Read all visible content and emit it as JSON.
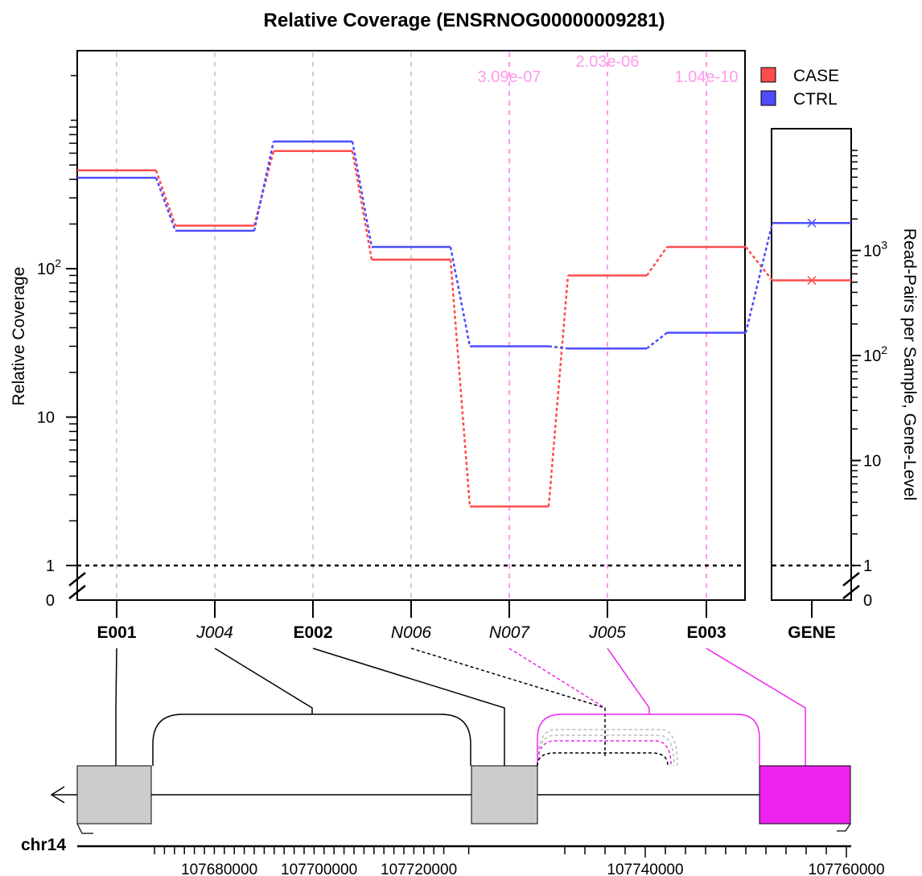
{
  "chart_data": {
    "type": "line",
    "title": "Relative Coverage (ENSRNOG00000009281)",
    "ylabel": "Relative Coverage",
    "y2label": "Read-Pairs per Sample, Gene-Level",
    "yscale": "log",
    "y_ticks": [
      "0",
      "1",
      "10",
      "10^2"
    ],
    "y2_ticks": [
      "0",
      "1",
      "10",
      "10^2",
      "10^3"
    ],
    "x_features": [
      {
        "id": "E001",
        "italic": false
      },
      {
        "id": "J004",
        "italic": true
      },
      {
        "id": "E002",
        "italic": false
      },
      {
        "id": "N006",
        "italic": true
      },
      {
        "id": "N007",
        "italic": true
      },
      {
        "id": "J005",
        "italic": true
      },
      {
        "id": "E003",
        "italic": false
      }
    ],
    "gene_label": "GENE",
    "legend": {
      "position": "top-right",
      "entries": [
        {
          "name": "CASE",
          "color": "#ff4d4d"
        },
        {
          "name": "CTRL",
          "color": "#4d4dff"
        }
      ]
    },
    "series": [
      {
        "name": "CASE",
        "color": "#ff4d4d",
        "values": [
          460,
          195,
          620,
          115,
          2.5,
          90,
          140
        ],
        "gene_level": 520
      },
      {
        "name": "CTRL",
        "color": "#4d4dff",
        "values": [
          410,
          180,
          720,
          140,
          30,
          29,
          37
        ],
        "gene_level": 1830
      }
    ],
    "significant": [
      {
        "feature": "N007",
        "pvalue": "3.09e-07"
      },
      {
        "feature": "J005",
        "pvalue": "2.03e-06"
      },
      {
        "feature": "E003",
        "pvalue": "1.04e-10"
      }
    ],
    "significant_color": "#ff99ee",
    "highlight_color": "#ee22ee",
    "reference_line": 1,
    "genome": {
      "chromosome": "chr14",
      "tick_labels": [
        "107680000",
        "107700000",
        "107720000",
        "107740000",
        "107760000"
      ]
    }
  }
}
